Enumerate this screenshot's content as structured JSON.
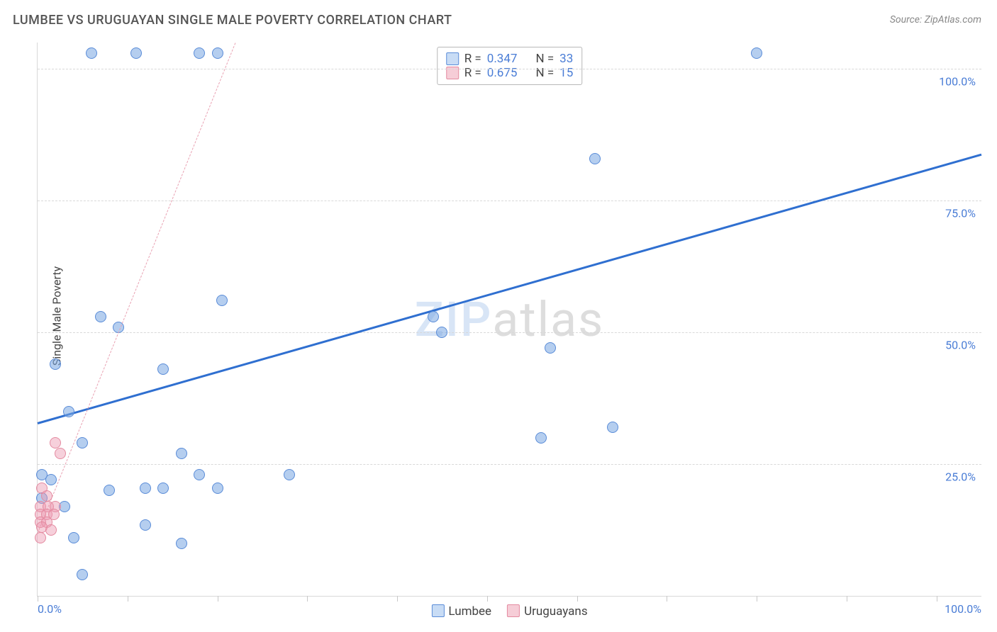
{
  "title": "LUMBEE VS URUGUAYAN SINGLE MALE POVERTY CORRELATION CHART",
  "source": "Source: ZipAtlas.com",
  "ylabel": "Single Male Poverty",
  "watermark": {
    "part1": "ZIP",
    "part2": "atlas"
  },
  "axes": {
    "xlim": [
      0,
      105
    ],
    "ylim": [
      0,
      105
    ],
    "x_ticks": [
      0,
      10,
      20,
      30,
      40,
      50,
      60,
      70,
      80,
      90,
      100
    ],
    "x_tick_labels": {
      "0": "0.0%",
      "100": "100.0%"
    },
    "y_gridlines": [
      25,
      50,
      75,
      100
    ],
    "y_tick_labels": {
      "25": "25.0%",
      "50": "50.0%",
      "75": "75.0%",
      "100": "100.0%"
    },
    "grid_color": "#d8d8d8",
    "tick_label_color": "#4a7dd6"
  },
  "stats_legend": {
    "rows": [
      {
        "swatch_fill": "#c8dcf5",
        "swatch_border": "#5a8cd8",
        "r": "0.347",
        "n": "33"
      },
      {
        "swatch_fill": "#f6cdd7",
        "swatch_border": "#e48aa0",
        "r": "0.675",
        "n": "15"
      }
    ],
    "r_label": "R =",
    "n_label": "N ="
  },
  "series_legend": {
    "items": [
      {
        "swatch_fill": "#c8dcf5",
        "swatch_border": "#5a8cd8",
        "label": "Lumbee"
      },
      {
        "swatch_fill": "#f6cdd7",
        "swatch_border": "#e48aa0",
        "label": "Uruguayans"
      }
    ]
  },
  "series": [
    {
      "name": "Lumbee",
      "marker": {
        "fill": "rgba(120,165,225,0.55)",
        "stroke": "#5a8cd8",
        "size": 16
      },
      "trend": {
        "style": "solid",
        "color": "#2f6fd0",
        "x1": 0,
        "y1": 33,
        "x2": 105,
        "y2": 84
      },
      "points": [
        [
          6,
          103
        ],
        [
          11,
          103
        ],
        [
          18,
          103
        ],
        [
          20,
          103
        ],
        [
          80,
          103
        ],
        [
          62,
          83
        ],
        [
          20.5,
          56
        ],
        [
          7,
          53
        ],
        [
          9,
          51
        ],
        [
          44,
          53
        ],
        [
          45,
          50
        ],
        [
          57,
          47
        ],
        [
          2,
          44
        ],
        [
          14,
          43
        ],
        [
          3.5,
          35
        ],
        [
          64,
          32
        ],
        [
          56,
          30
        ],
        [
          5,
          29
        ],
        [
          16,
          27
        ],
        [
          0.5,
          23
        ],
        [
          18,
          23
        ],
        [
          28,
          23
        ],
        [
          1.5,
          22
        ],
        [
          12,
          20.5
        ],
        [
          14,
          20.5
        ],
        [
          20,
          20.5
        ],
        [
          8,
          20
        ],
        [
          0.5,
          18.5
        ],
        [
          3,
          17
        ],
        [
          12,
          13.5
        ],
        [
          4,
          11
        ],
        [
          16,
          10
        ],
        [
          5,
          4
        ]
      ]
    },
    {
      "name": "Uruguayans",
      "marker": {
        "fill": "rgba(235,150,175,0.45)",
        "stroke": "#e48aa0",
        "size": 16
      },
      "trend": {
        "style": "dashed",
        "color": "#e9a2b3",
        "x1": 0,
        "y1": 12,
        "x2": 22,
        "y2": 105
      },
      "points": [
        [
          2,
          29
        ],
        [
          2.5,
          27
        ],
        [
          0.5,
          20.5
        ],
        [
          1,
          19
        ],
        [
          0.3,
          17
        ],
        [
          1.2,
          17
        ],
        [
          2,
          17
        ],
        [
          0.3,
          15.5
        ],
        [
          1,
          15.5
        ],
        [
          1.8,
          15.5
        ],
        [
          0.3,
          14
        ],
        [
          1,
          14
        ],
        [
          0.5,
          13
        ],
        [
          1.5,
          12.5
        ],
        [
          0.3,
          11
        ]
      ]
    }
  ]
}
